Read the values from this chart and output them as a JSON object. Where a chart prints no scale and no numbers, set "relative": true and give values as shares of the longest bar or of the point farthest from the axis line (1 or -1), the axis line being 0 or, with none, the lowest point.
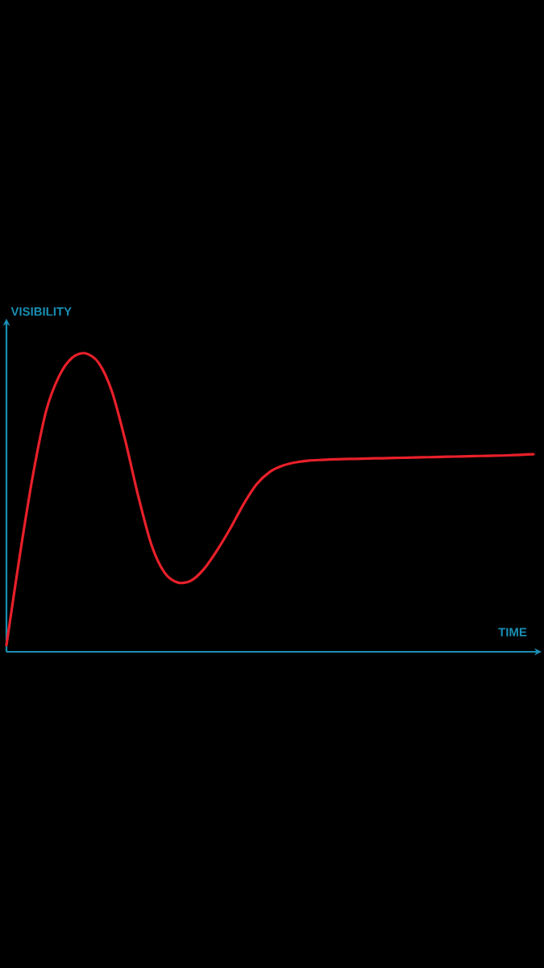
{
  "chart_data": {
    "type": "line",
    "relative": true,
    "xlabel": "TIME",
    "ylabel": "VISIBILITY",
    "categories": [
      null,
      null,
      null,
      null,
      null,
      null,
      null,
      null,
      null,
      null,
      null,
      null,
      null,
      null,
      null,
      null,
      null,
      null,
      null,
      null,
      null,
      null,
      null,
      null,
      null,
      null,
      null,
      null,
      null,
      null,
      null,
      null,
      null,
      null,
      null,
      null,
      null,
      null,
      null,
      null,
      null
    ],
    "series": [
      {
        "color": "#e8202a",
        "values": [
          0.022,
          0.319,
          0.589,
          0.805,
          0.924,
          0.986,
          1.0,
          0.968,
          0.873,
          0.711,
          0.522,
          0.359,
          0.265,
          0.232,
          0.238,
          0.278,
          0.341,
          0.414,
          0.495,
          0.562,
          0.603,
          0.624,
          0.635,
          0.641,
          0.643,
          0.645,
          0.646,
          0.647,
          0.648,
          0.649,
          0.65,
          0.651,
          0.652,
          0.653,
          0.654,
          0.655,
          0.656,
          0.657,
          0.658,
          0.66,
          0.662
        ]
      }
    ]
  }
}
